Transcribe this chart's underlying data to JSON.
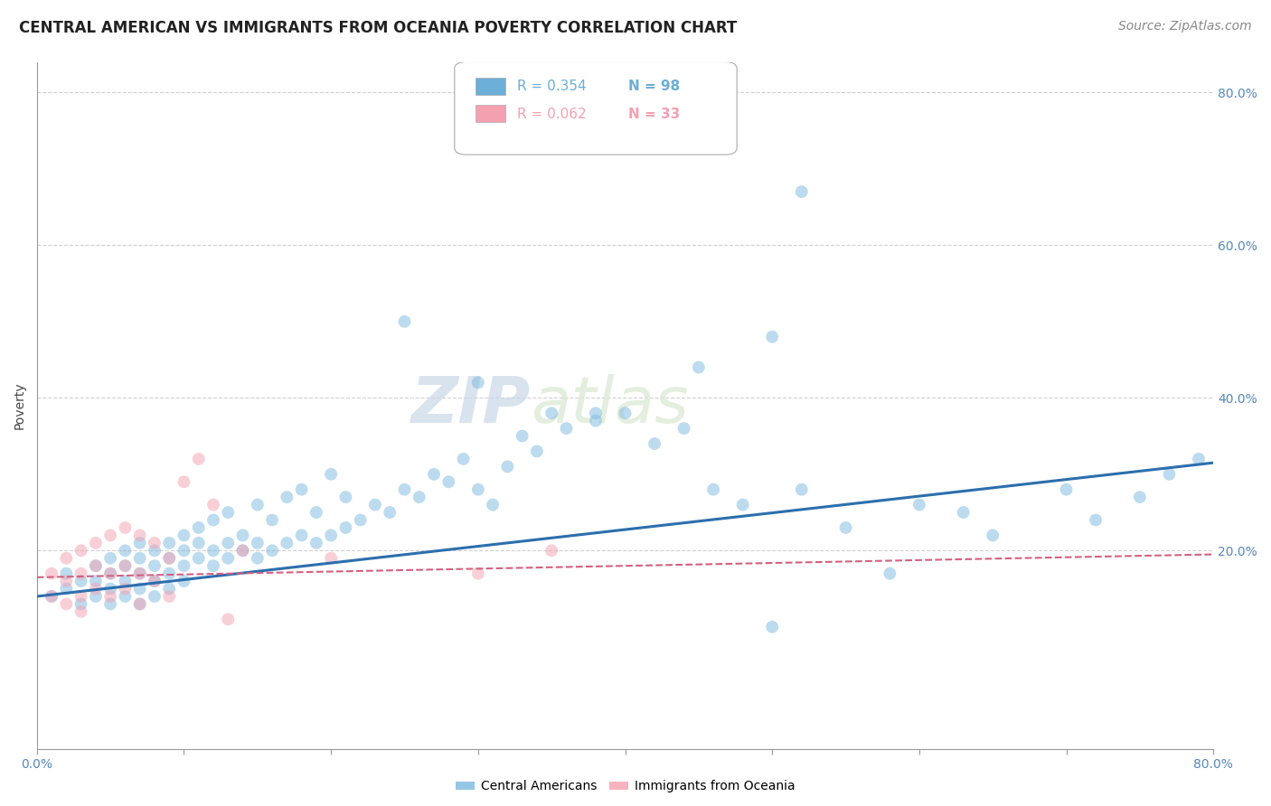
{
  "title": "CENTRAL AMERICAN VS IMMIGRANTS FROM OCEANIA POVERTY CORRELATION CHART",
  "source": "Source: ZipAtlas.com",
  "ylabel": "Poverty",
  "y_ticks_right": [
    0.2,
    0.4,
    0.6,
    0.8
  ],
  "y_tick_labels_right": [
    "20.0%",
    "40.0%",
    "60.0%",
    "80.0%"
  ],
  "x_range": [
    0.0,
    0.8
  ],
  "y_range": [
    -0.06,
    0.84
  ],
  "legend_entries": [
    {
      "label_r": "R = 0.354",
      "label_n": "N = 98",
      "color": "#6baed6"
    },
    {
      "label_r": "R = 0.062",
      "label_n": "N = 33",
      "color": "#f4a0b0"
    }
  ],
  "blue_scatter_x": [
    0.01,
    0.02,
    0.02,
    0.03,
    0.03,
    0.04,
    0.04,
    0.04,
    0.05,
    0.05,
    0.05,
    0.05,
    0.06,
    0.06,
    0.06,
    0.06,
    0.07,
    0.07,
    0.07,
    0.07,
    0.07,
    0.08,
    0.08,
    0.08,
    0.08,
    0.09,
    0.09,
    0.09,
    0.09,
    0.1,
    0.1,
    0.1,
    0.1,
    0.11,
    0.11,
    0.11,
    0.12,
    0.12,
    0.12,
    0.13,
    0.13,
    0.13,
    0.14,
    0.14,
    0.15,
    0.15,
    0.15,
    0.16,
    0.16,
    0.17,
    0.17,
    0.18,
    0.18,
    0.19,
    0.19,
    0.2,
    0.2,
    0.21,
    0.21,
    0.22,
    0.23,
    0.24,
    0.25,
    0.26,
    0.27,
    0.28,
    0.29,
    0.3,
    0.31,
    0.32,
    0.33,
    0.34,
    0.35,
    0.36,
    0.38,
    0.4,
    0.42,
    0.44,
    0.46,
    0.48,
    0.5,
    0.52,
    0.55,
    0.58,
    0.6,
    0.63,
    0.65,
    0.7,
    0.72,
    0.75,
    0.77,
    0.79,
    0.45,
    0.5,
    0.38,
    0.3,
    0.25,
    0.52
  ],
  "blue_scatter_y": [
    0.14,
    0.15,
    0.17,
    0.13,
    0.16,
    0.14,
    0.18,
    0.16,
    0.15,
    0.17,
    0.19,
    0.13,
    0.16,
    0.18,
    0.14,
    0.2,
    0.15,
    0.17,
    0.19,
    0.13,
    0.21,
    0.16,
    0.18,
    0.2,
    0.14,
    0.17,
    0.19,
    0.21,
    0.15,
    0.18,
    0.2,
    0.22,
    0.16,
    0.19,
    0.21,
    0.23,
    0.18,
    0.2,
    0.24,
    0.19,
    0.21,
    0.25,
    0.2,
    0.22,
    0.19,
    0.21,
    0.26,
    0.2,
    0.24,
    0.21,
    0.27,
    0.22,
    0.28,
    0.21,
    0.25,
    0.22,
    0.3,
    0.23,
    0.27,
    0.24,
    0.26,
    0.25,
    0.28,
    0.27,
    0.3,
    0.29,
    0.32,
    0.28,
    0.26,
    0.31,
    0.35,
    0.33,
    0.38,
    0.36,
    0.37,
    0.38,
    0.34,
    0.36,
    0.28,
    0.26,
    0.1,
    0.28,
    0.23,
    0.17,
    0.26,
    0.25,
    0.22,
    0.28,
    0.24,
    0.27,
    0.3,
    0.32,
    0.44,
    0.48,
    0.38,
    0.42,
    0.5,
    0.67
  ],
  "pink_scatter_x": [
    0.01,
    0.01,
    0.02,
    0.02,
    0.02,
    0.03,
    0.03,
    0.03,
    0.03,
    0.04,
    0.04,
    0.04,
    0.05,
    0.05,
    0.05,
    0.06,
    0.06,
    0.06,
    0.07,
    0.07,
    0.07,
    0.08,
    0.08,
    0.09,
    0.09,
    0.1,
    0.11,
    0.12,
    0.13,
    0.14,
    0.2,
    0.3,
    0.35
  ],
  "pink_scatter_y": [
    0.14,
    0.17,
    0.13,
    0.16,
    0.19,
    0.14,
    0.17,
    0.2,
    0.12,
    0.15,
    0.18,
    0.21,
    0.14,
    0.17,
    0.22,
    0.15,
    0.18,
    0.23,
    0.13,
    0.17,
    0.22,
    0.16,
    0.21,
    0.14,
    0.19,
    0.29,
    0.32,
    0.26,
    0.11,
    0.2,
    0.19,
    0.17,
    0.2
  ],
  "blue_line_x": [
    0.0,
    0.8
  ],
  "blue_line_y": [
    0.14,
    0.315
  ],
  "pink_line_x": [
    0.0,
    0.8
  ],
  "pink_line_y": [
    0.165,
    0.195
  ],
  "scatter_alpha": 0.5,
  "scatter_size": 100,
  "blue_color": "#7ab8e0",
  "pink_color": "#f4a0b0",
  "blue_line_color": "#2c6fad",
  "pink_line_color": "#d46080",
  "background_color": "#ffffff",
  "grid_color": "#d0d0d0",
  "watermark_zip": "ZIP",
  "watermark_atlas": "atlas",
  "title_fontsize": 12,
  "source_fontsize": 10,
  "axis_fontsize": 10,
  "legend_fontsize": 11
}
